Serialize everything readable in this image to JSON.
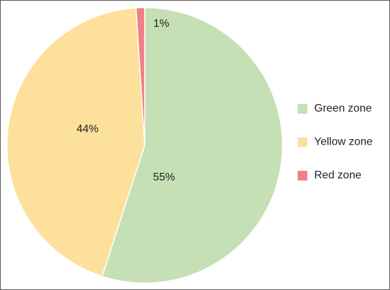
{
  "chart_data": {
    "type": "pie",
    "categories": [
      "Green zone",
      "Yellow zone",
      "Red zone"
    ],
    "values": [
      55,
      44,
      1
    ],
    "value_labels": [
      "55%",
      "44%",
      "1%"
    ],
    "colors": [
      "#c5e0b4",
      "#fde09c",
      "#f08086"
    ],
    "legend": "right"
  }
}
